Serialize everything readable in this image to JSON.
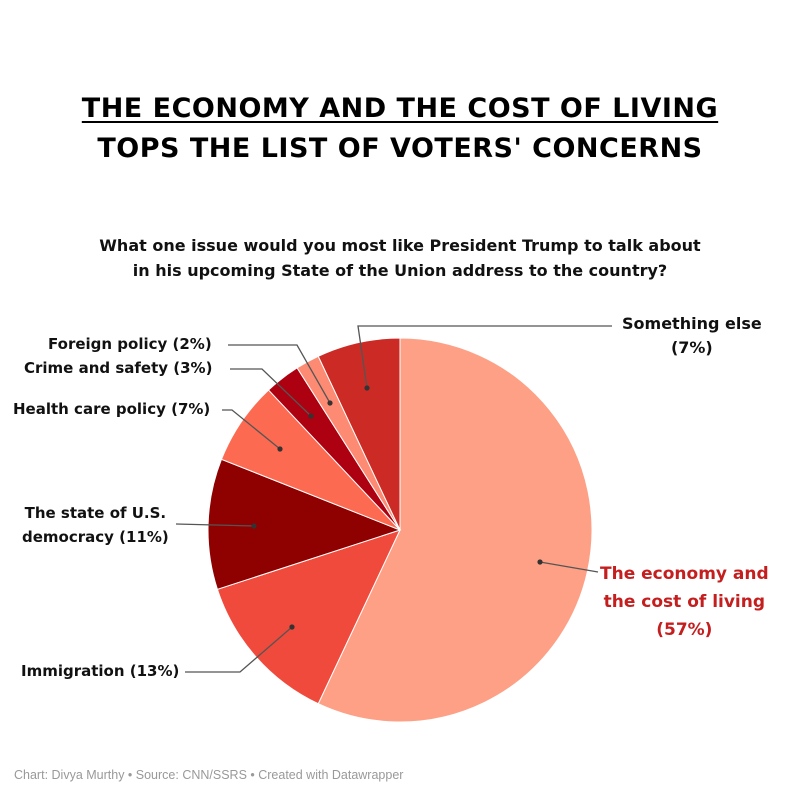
{
  "title_line1": "THE ECONOMY AND THE COST OF LIVING",
  "title_line2": "TOPS THE LIST OF VOTERS' CONCERNS",
  "subtitle_line1": "What one issue would you most like President Trump to talk about",
  "subtitle_line2": "in his upcoming State of the Union address to the country?",
  "footer": "Chart: Divya Murthy • Source: CNN/SSRS • Created with Datawrapper",
  "chart_data": {
    "type": "pie",
    "title": "THE ECONOMY AND THE COST OF LIVING TOPS THE LIST OF VOTERS' CONCERNS",
    "start": "top, clockwise",
    "slices": [
      {
        "label": "The economy and the cost of living",
        "value": 57,
        "color": "#fda085",
        "label_lines": [
          "The economy and",
          "the cost of living",
          "(57%)"
        ]
      },
      {
        "label": "Immigration",
        "value": 13,
        "color": "#ef4a3c",
        "label_lines": [
          "Immigration (13%)"
        ]
      },
      {
        "label": "The state of U.S. democracy",
        "value": 11,
        "color": "#8f0000",
        "label_lines": [
          "The state of U.S.",
          "democracy (11%)"
        ]
      },
      {
        "label": "Health care policy",
        "value": 7,
        "color": "#fd6a52",
        "label_lines": [
          "Health care policy (7%)"
        ]
      },
      {
        "label": "Crime and safety",
        "value": 3,
        "color": "#ad0010",
        "label_lines": [
          "Crime and safety (3%)"
        ]
      },
      {
        "label": "Foreign policy",
        "value": 2,
        "color": "#fd8b73",
        "label_lines": [
          "Foreign policy (2%)"
        ]
      },
      {
        "label": "Something else",
        "value": 7,
        "color": "#cc2a24",
        "label_lines": [
          "Something else",
          "(7%)"
        ]
      }
    ]
  }
}
